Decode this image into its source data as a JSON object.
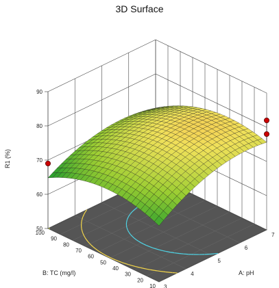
{
  "chart_data": {
    "type": "surface3d",
    "title": "3D Surface",
    "zlabel": "R1 (%)",
    "xlabel": "A: pH",
    "ylabel": "B: TC (mg/l)",
    "x_ticks": [
      3,
      4,
      5,
      6,
      7
    ],
    "y_ticks": [
      10,
      20,
      30,
      40,
      50,
      60,
      70,
      80,
      90,
      100
    ],
    "z_ticks": [
      50,
      60,
      70,
      80,
      90
    ],
    "xlim": [
      3,
      7
    ],
    "ylim": [
      10,
      100
    ],
    "zlim": [
      50,
      90
    ],
    "design_points": [
      {
        "x": 3,
        "y": 100,
        "z": 69
      },
      {
        "x": 7,
        "y": 10,
        "z": 82
      },
      {
        "x": 7,
        "y": 10,
        "z": 78
      }
    ],
    "colormap": [
      "#2e8b2e",
      "#9acd32",
      "#ffe066",
      "#ff9a3c"
    ],
    "contour_levels": [
      55,
      60,
      65,
      70,
      75
    ]
  }
}
